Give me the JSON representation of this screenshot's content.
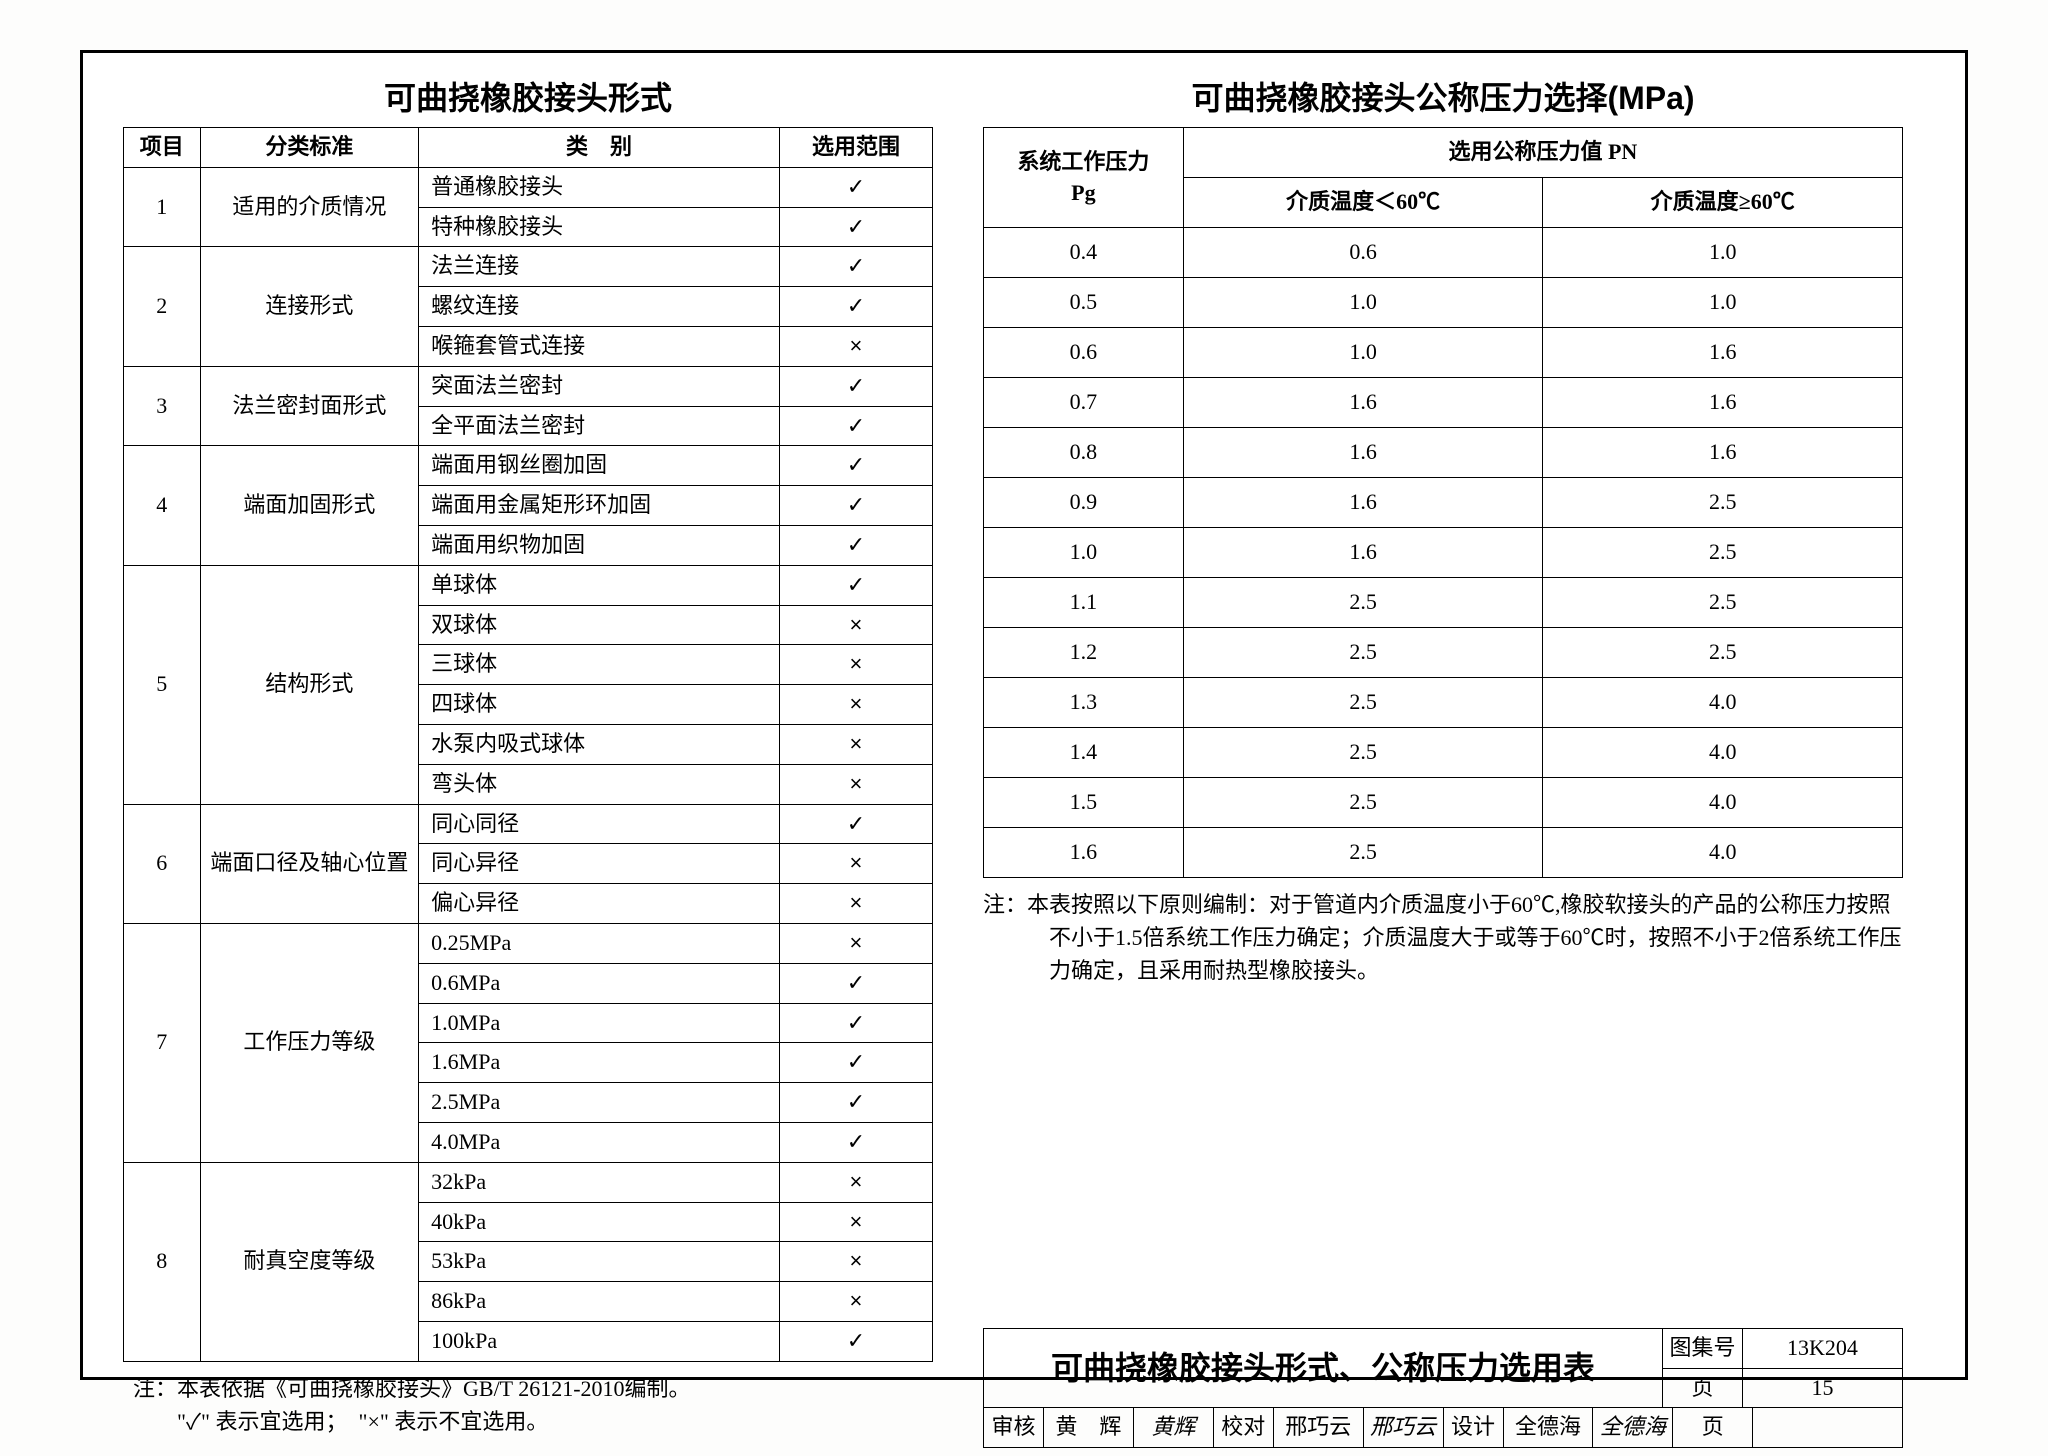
{
  "left_table": {
    "title": "可曲挠橡胶接头形式",
    "headers": {
      "c1": "项目",
      "c2": "分类标准",
      "c3": "类　别",
      "c4": "选用范围"
    },
    "groups": [
      {
        "idx": "1",
        "std": "适用的介质情况",
        "rows": [
          {
            "cat": "普通橡胶接头",
            "sel": "✓"
          },
          {
            "cat": "特种橡胶接头",
            "sel": "✓"
          }
        ]
      },
      {
        "idx": "2",
        "std": "连接形式",
        "rows": [
          {
            "cat": "法兰连接",
            "sel": "✓"
          },
          {
            "cat": "螺纹连接",
            "sel": "✓"
          },
          {
            "cat": "喉箍套管式连接",
            "sel": "×"
          }
        ]
      },
      {
        "idx": "3",
        "std": "法兰密封面形式",
        "rows": [
          {
            "cat": "突面法兰密封",
            "sel": "✓"
          },
          {
            "cat": "全平面法兰密封",
            "sel": "✓"
          }
        ]
      },
      {
        "idx": "4",
        "std": "端面加固形式",
        "rows": [
          {
            "cat": "端面用钢丝圈加固",
            "sel": "✓"
          },
          {
            "cat": "端面用金属矩形环加固",
            "sel": "✓"
          },
          {
            "cat": "端面用织物加固",
            "sel": "✓"
          }
        ]
      },
      {
        "idx": "5",
        "std": "结构形式",
        "rows": [
          {
            "cat": "单球体",
            "sel": "✓"
          },
          {
            "cat": "双球体",
            "sel": "×"
          },
          {
            "cat": "三球体",
            "sel": "×"
          },
          {
            "cat": "四球体",
            "sel": "×"
          },
          {
            "cat": "水泵内吸式球体",
            "sel": "×"
          },
          {
            "cat": "弯头体",
            "sel": "×"
          }
        ]
      },
      {
        "idx": "6",
        "std": "端面口径及轴心位置",
        "rows": [
          {
            "cat": "同心同径",
            "sel": "✓"
          },
          {
            "cat": "同心异径",
            "sel": "×"
          },
          {
            "cat": "偏心异径",
            "sel": "×"
          }
        ]
      },
      {
        "idx": "7",
        "std": "工作压力等级",
        "rows": [
          {
            "cat": "0.25MPa",
            "sel": "×"
          },
          {
            "cat": "0.6MPa",
            "sel": "✓"
          },
          {
            "cat": "1.0MPa",
            "sel": "✓"
          },
          {
            "cat": "1.6MPa",
            "sel": "✓"
          },
          {
            "cat": "2.5MPa",
            "sel": "✓"
          },
          {
            "cat": "4.0MPa",
            "sel": "✓"
          }
        ]
      },
      {
        "idx": "8",
        "std": "耐真空度等级",
        "rows": [
          {
            "cat": "32kPa",
            "sel": "×"
          },
          {
            "cat": "40kPa",
            "sel": "×"
          },
          {
            "cat": "53kPa",
            "sel": "×"
          },
          {
            "cat": "86kPa",
            "sel": "×"
          },
          {
            "cat": "100kPa",
            "sel": "✓"
          }
        ]
      }
    ],
    "note": "注：本表依据《可曲挠橡胶接头》GB/T 26121-2010编制。\"✓\" 表示宜选用；\"×\" 表示不宜选用。"
  },
  "right_table": {
    "title": "可曲挠橡胶接头公称压力选择(MPa)",
    "header_top_left": "系统工作压力\nPg",
    "header_top_right": "选用公称压力值 PN",
    "sub1": "介质温度＜60℃",
    "sub2": "介质温度≥60℃",
    "rows": [
      {
        "pg": "0.4",
        "a": "0.6",
        "b": "1.0"
      },
      {
        "pg": "0.5",
        "a": "1.0",
        "b": "1.0"
      },
      {
        "pg": "0.6",
        "a": "1.0",
        "b": "1.6"
      },
      {
        "pg": "0.7",
        "a": "1.6",
        "b": "1.6"
      },
      {
        "pg": "0.8",
        "a": "1.6",
        "b": "1.6"
      },
      {
        "pg": "0.9",
        "a": "1.6",
        "b": "2.5"
      },
      {
        "pg": "1.0",
        "a": "1.6",
        "b": "2.5"
      },
      {
        "pg": "1.1",
        "a": "2.5",
        "b": "2.5"
      },
      {
        "pg": "1.2",
        "a": "2.5",
        "b": "2.5"
      },
      {
        "pg": "1.3",
        "a": "2.5",
        "b": "4.0"
      },
      {
        "pg": "1.4",
        "a": "2.5",
        "b": "4.0"
      },
      {
        "pg": "1.5",
        "a": "2.5",
        "b": "4.0"
      },
      {
        "pg": "1.6",
        "a": "2.5",
        "b": "4.0"
      }
    ],
    "note": "注：本表按照以下原则编制：对于管道内介质温度小于60℃,橡胶软接头的产品的公称压力按照不小于1.5倍系统工作压力确定；介质温度大于或等于60℃时，按照不小于2倍系统工作压力确定，且采用耐热型橡胶接头。"
  },
  "title_block": {
    "main_title": "可曲挠橡胶接头形式、公称压力选用表",
    "drawing_set_label": "图集号",
    "drawing_set_no": "13K204",
    "review_label": "审核",
    "review_name": "黄　辉",
    "review_sig": "黄辉",
    "check_label": "校对",
    "check_name": "邢巧云",
    "check_sig": "邢巧云",
    "design_label": "设计",
    "design_name": "全德海",
    "design_sig": "全德海",
    "page_label": "页",
    "page_no": "15"
  },
  "colors": {
    "border": "#000000",
    "background": "#ffffff",
    "page_bg": "#fdfdfc"
  }
}
